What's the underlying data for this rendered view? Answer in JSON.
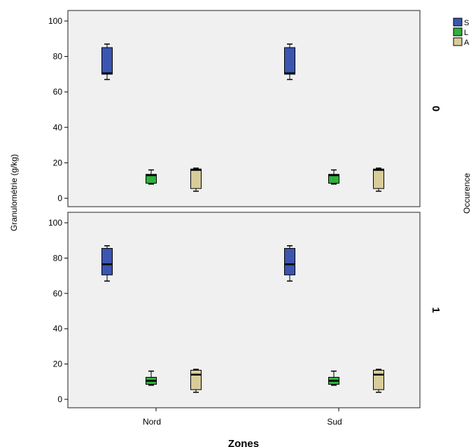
{
  "chart_data": {
    "type": "boxplot",
    "xlabel": "Zones",
    "ylabel": "Granulométrie (g/kg)",
    "panel_axis_label": "Occurence",
    "categories": [
      "Nord",
      "Sud"
    ],
    "ylim": [
      0,
      100
    ],
    "yticks": [
      0,
      20,
      40,
      60,
      80,
      100
    ],
    "legend": {
      "position": "top-right",
      "labels": [
        "S",
        "L",
        "A"
      ]
    },
    "series_colors": [
      "#3b55b0",
      "#2fb13c",
      "#d8cc9a"
    ],
    "panels": [
      {
        "label": "0",
        "groups": [
          {
            "category": "Nord",
            "boxes": [
              {
                "series": "S",
                "min": 67,
                "q1": 70,
                "median": 70.5,
                "q3": 85,
                "max": 87
              },
              {
                "series": "L",
                "min": 8,
                "q1": 8.5,
                "median": 13,
                "q3": 13.5,
                "max": 16
              },
              {
                "series": "A",
                "min": 4,
                "q1": 5.5,
                "median": 16,
                "q3": 16.5,
                "max": 17
              }
            ]
          },
          {
            "category": "Sud",
            "boxes": [
              {
                "series": "S",
                "min": 67,
                "q1": 70,
                "median": 70.5,
                "q3": 85,
                "max": 87
              },
              {
                "series": "L",
                "min": 8,
                "q1": 8.5,
                "median": 13,
                "q3": 13.5,
                "max": 16
              },
              {
                "series": "A",
                "min": 4,
                "q1": 5.5,
                "median": 16,
                "q3": 16.5,
                "max": 17
              }
            ]
          }
        ]
      },
      {
        "label": "1",
        "groups": [
          {
            "category": "Nord",
            "boxes": [
              {
                "series": "S",
                "min": 67,
                "q1": 70.5,
                "median": 76.5,
                "q3": 85.5,
                "max": 87
              },
              {
                "series": "L",
                "min": 8,
                "q1": 8.5,
                "median": 10.5,
                "q3": 12.5,
                "max": 16
              },
              {
                "series": "A",
                "min": 4,
                "q1": 5.5,
                "median": 14,
                "q3": 16.5,
                "max": 17
              }
            ]
          },
          {
            "category": "Sud",
            "boxes": [
              {
                "series": "S",
                "min": 67,
                "q1": 70.5,
                "median": 76.5,
                "q3": 85.5,
                "max": 87
              },
              {
                "series": "L",
                "min": 8,
                "q1": 8.5,
                "median": 10.5,
                "q3": 12.5,
                "max": 16
              },
              {
                "series": "A",
                "min": 4,
                "q1": 5.5,
                "median": 14,
                "q3": 16.5,
                "max": 17
              }
            ]
          }
        ]
      }
    ]
  }
}
